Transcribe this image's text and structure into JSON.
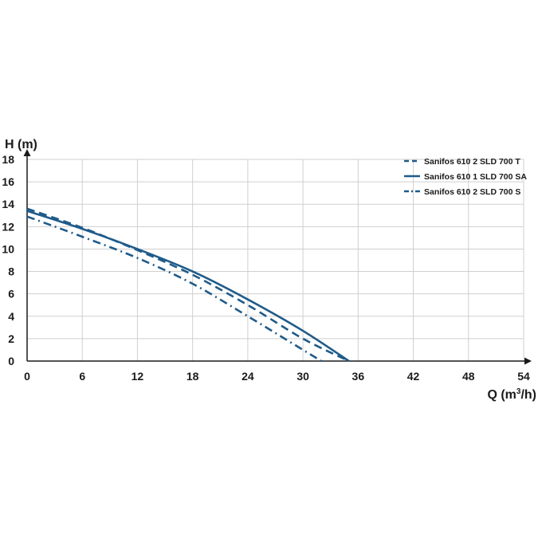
{
  "chart_data": {
    "type": "line",
    "ylabel": "H (m)",
    "xlabel_prefix": "Q (m",
    "xlabel_sup": "3",
    "xlabel_suffix": "/h)",
    "xlim": [
      0,
      54
    ],
    "ylim": [
      0,
      18
    ],
    "xticks": [
      0,
      6,
      12,
      18,
      24,
      30,
      36,
      42,
      48,
      54
    ],
    "yticks": [
      0,
      2,
      4,
      6,
      8,
      10,
      12,
      14,
      16,
      18
    ],
    "grid": true,
    "legend_position": "top-right",
    "color": "#1f5b8a",
    "series": [
      {
        "name": "Sanifos 610 2 SLD 700 T",
        "style": "dashed",
        "points": [
          [
            0,
            13.6
          ],
          [
            6,
            11.9
          ],
          [
            12,
            9.9
          ],
          [
            18,
            7.7
          ],
          [
            24,
            5.0
          ],
          [
            30,
            2.0
          ],
          [
            35,
            0
          ]
        ]
      },
      {
        "name": "Sanifos 610 1 SLD 700 SA",
        "style": "solid",
        "points": [
          [
            0,
            13.4
          ],
          [
            6,
            11.8
          ],
          [
            12,
            10.0
          ],
          [
            18,
            8.0
          ],
          [
            24,
            5.5
          ],
          [
            30,
            2.7
          ],
          [
            35,
            0
          ]
        ]
      },
      {
        "name": "Sanifos 610 2 SLD 700 S",
        "style": "dashdot",
        "points": [
          [
            0,
            12.9
          ],
          [
            6,
            11.1
          ],
          [
            12,
            9.2
          ],
          [
            18,
            6.9
          ],
          [
            24,
            4.0
          ],
          [
            30,
            1.0
          ],
          [
            32,
            0
          ]
        ]
      }
    ]
  }
}
